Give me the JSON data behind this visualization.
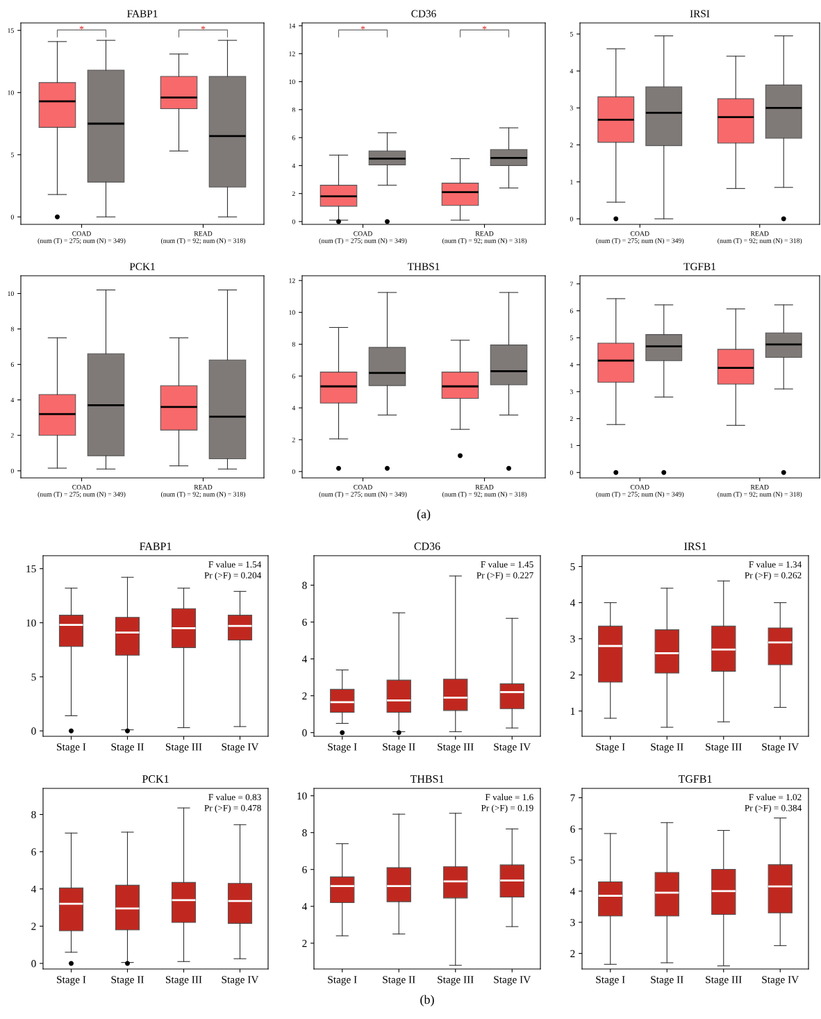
{
  "chart_data": [
    {
      "type": "box",
      "title": "FABP1",
      "categories": [
        "COAD\n(num (T) = 275; num (N) = 349)",
        "READ\n(num (T) = 92; num (N) = 318)"
      ],
      "ylim": [
        -0.6,
        15.6
      ],
      "yticks": [
        0,
        5,
        10,
        15
      ],
      "annotations": [
        "*",
        "*"
      ],
      "series": [
        {
          "color": "#f8696b",
          "boxes": [
            {
              "low": 1.8,
              "q1": 7.2,
              "median": 9.3,
              "q3": 10.8,
              "high": 14.1,
              "outliers": [
                0
              ]
            },
            {
              "low": 5.3,
              "q1": 8.7,
              "median": 9.6,
              "q3": 11.3,
              "high": 13.1
            }
          ]
        },
        {
          "color": "#7f7a78",
          "boxes": [
            {
              "low": 0,
              "q1": 2.8,
              "median": 7.5,
              "q3": 11.8,
              "high": 14.2
            },
            {
              "low": 0,
              "q1": 2.4,
              "median": 6.5,
              "q3": 11.3,
              "high": 14.2
            }
          ]
        }
      ]
    },
    {
      "type": "box",
      "title": "CD36",
      "categories": [
        "COAD\n(num (T) = 275; num (N) = 349)",
        "READ\n(num (T) = 92; num (N) = 318)"
      ],
      "ylim": [
        -0.2,
        14.2
      ],
      "yticks": [
        0,
        2,
        4,
        6,
        8,
        10,
        12,
        14
      ],
      "annotations": [
        "*",
        "*"
      ],
      "series": [
        {
          "color": "#f8696b",
          "boxes": [
            {
              "low": 0.1,
              "q1": 1.1,
              "median": 1.8,
              "q3": 2.6,
              "high": 4.75,
              "outliers": [
                0
              ]
            },
            {
              "low": 0.1,
              "q1": 1.15,
              "median": 2.1,
              "q3": 2.75,
              "high": 4.5
            }
          ]
        },
        {
          "color": "#7f7a78",
          "boxes": [
            {
              "low": 2.6,
              "q1": 4.05,
              "median": 4.5,
              "q3": 5.05,
              "high": 6.35,
              "outliers": [
                0
              ]
            },
            {
              "low": 2.4,
              "q1": 4.0,
              "median": 4.55,
              "q3": 5.15,
              "high": 6.7
            }
          ]
        }
      ]
    },
    {
      "type": "box",
      "title": "IRSI",
      "categories": [
        "COAD\n(num (T) = 275; num (N) = 349)",
        "READ\n(num (T) = 92; num (N) = 318)"
      ],
      "ylim": [
        -0.15,
        5.3
      ],
      "yticks": [
        0,
        1,
        2,
        3,
        4,
        5
      ],
      "series": [
        {
          "color": "#f8696b",
          "boxes": [
            {
              "low": 0.45,
              "q1": 2.07,
              "median": 2.68,
              "q3": 3.3,
              "high": 4.6,
              "outliers": [
                0
              ]
            },
            {
              "low": 0.82,
              "q1": 2.05,
              "median": 2.75,
              "q3": 3.25,
              "high": 4.4
            }
          ]
        },
        {
          "color": "#7f7a78",
          "boxes": [
            {
              "low": 0,
              "q1": 1.98,
              "median": 2.87,
              "q3": 3.57,
              "high": 4.95
            },
            {
              "low": 0.85,
              "q1": 2.18,
              "median": 3.0,
              "q3": 3.62,
              "high": 4.95,
              "outliers": [
                0
              ]
            }
          ]
        }
      ]
    },
    {
      "type": "box",
      "title": "PCK1",
      "categories": [
        "COAD\n(num (T) = 275; num (N) = 349)",
        "READ\n(num (T) = 92; num (N) = 318)"
      ],
      "ylim": [
        -0.4,
        11
      ],
      "yticks": [
        0,
        2,
        4,
        6,
        8,
        10
      ],
      "series": [
        {
          "color": "#f8696b",
          "boxes": [
            {
              "low": 0.15,
              "q1": 2.0,
              "median": 3.2,
              "q3": 4.3,
              "high": 7.5
            },
            {
              "low": 0.28,
              "q1": 2.3,
              "median": 3.6,
              "q3": 4.8,
              "high": 7.5
            }
          ]
        },
        {
          "color": "#7f7a78",
          "boxes": [
            {
              "low": 0.1,
              "q1": 0.85,
              "median": 3.7,
              "q3": 6.6,
              "high": 10.2
            },
            {
              "low": 0.1,
              "q1": 0.68,
              "median": 3.05,
              "q3": 6.25,
              "high": 10.2
            }
          ]
        }
      ]
    },
    {
      "type": "box",
      "title": "THBS1",
      "xlabel": "(a)",
      "categories": [
        "COAD\n(num (T) = 275; num (N) = 349)",
        "READ\n(num (T) = 92; num (N) = 318)"
      ],
      "ylim": [
        -0.4,
        12.3
      ],
      "yticks": [
        0,
        2,
        4,
        6,
        8,
        10,
        12
      ],
      "series": [
        {
          "color": "#f8696b",
          "boxes": [
            {
              "low": 2.05,
              "q1": 4.3,
              "median": 5.35,
              "q3": 6.25,
              "high": 9.05,
              "outliers": [
                0.2
              ]
            },
            {
              "low": 2.65,
              "q1": 4.6,
              "median": 5.35,
              "q3": 6.25,
              "high": 8.25,
              "outliers": [
                1.0
              ]
            }
          ]
        },
        {
          "color": "#7f7a78",
          "boxes": [
            {
              "low": 3.55,
              "q1": 5.4,
              "median": 6.2,
              "q3": 7.8,
              "high": 11.25,
              "outliers": [
                0.2
              ]
            },
            {
              "low": 3.55,
              "q1": 5.45,
              "median": 6.3,
              "q3": 7.95,
              "high": 11.25,
              "outliers": [
                0.2
              ]
            }
          ]
        }
      ]
    },
    {
      "type": "box",
      "title": "TGFB1",
      "categories": [
        "COAD\n(num (T) = 275; num (N) = 349)",
        "READ\n(num (T) = 92; num (N) = 318)"
      ],
      "ylim": [
        -0.2,
        7.3
      ],
      "yticks": [
        0,
        1,
        2,
        3,
        4,
        5,
        6,
        7
      ],
      "series": [
        {
          "color": "#f8696b",
          "boxes": [
            {
              "low": 1.78,
              "q1": 3.35,
              "median": 4.15,
              "q3": 4.8,
              "high": 6.45,
              "outliers": [
                0
              ]
            },
            {
              "low": 1.75,
              "q1": 3.28,
              "median": 3.88,
              "q3": 4.57,
              "high": 6.07
            }
          ]
        },
        {
          "color": "#7f7a78",
          "boxes": [
            {
              "low": 2.8,
              "q1": 4.15,
              "median": 4.68,
              "q3": 5.12,
              "high": 6.22,
              "outliers": [
                0
              ]
            },
            {
              "low": 3.1,
              "q1": 4.27,
              "median": 4.75,
              "q3": 5.18,
              "high": 6.22,
              "outliers": [
                0
              ]
            }
          ]
        }
      ]
    },
    {
      "type": "box",
      "title": "FABP1",
      "categories": [
        "Stage I",
        "Stage II",
        "Stage III",
        "Stage IV"
      ],
      "ylim": [
        -0.5,
        16.2
      ],
      "yticks": [
        0,
        5,
        10,
        15
      ],
      "annotations": [
        "F value = 1.54",
        "Pr (>F) = 0.204"
      ],
      "series": [
        {
          "color": "#c0281f",
          "boxes": [
            {
              "low": 1.4,
              "q1": 7.8,
              "median": 9.8,
              "q3": 10.7,
              "high": 13.2,
              "outliers": [
                0
              ]
            },
            {
              "low": 0.1,
              "q1": 7.0,
              "median": 9.1,
              "q3": 10.5,
              "high": 14.2,
              "outliers": [
                0
              ]
            },
            {
              "low": 0.3,
              "q1": 7.7,
              "median": 9.5,
              "q3": 11.3,
              "high": 13.2
            },
            {
              "low": 0.4,
              "q1": 8.4,
              "median": 9.7,
              "q3": 10.7,
              "high": 12.9
            }
          ]
        }
      ]
    },
    {
      "type": "box",
      "title": "CD36",
      "categories": [
        "Stage I",
        "Stage II",
        "Stage III",
        "Stage IV"
      ],
      "ylim": [
        -0.2,
        9.6
      ],
      "yticks": [
        0,
        2,
        4,
        6,
        8
      ],
      "annotations": [
        "F value = 1.45",
        "Pr (>F) = 0.227"
      ],
      "series": [
        {
          "color": "#c0281f",
          "boxes": [
            {
              "low": 0.5,
              "q1": 1.1,
              "median": 1.65,
              "q3": 2.35,
              "high": 3.4,
              "outliers": [
                0
              ]
            },
            {
              "low": 0.05,
              "q1": 1.1,
              "median": 1.75,
              "q3": 2.85,
              "high": 6.5,
              "outliers": [
                0
              ]
            },
            {
              "low": 0.05,
              "q1": 1.2,
              "median": 1.9,
              "q3": 2.9,
              "high": 8.5
            },
            {
              "low": 0.25,
              "q1": 1.3,
              "median": 2.2,
              "q3": 2.65,
              "high": 6.2
            }
          ]
        }
      ]
    },
    {
      "type": "box",
      "title": "IRS1",
      "categories": [
        "Stage I",
        "Stage II",
        "Stage III",
        "Stage IV"
      ],
      "ylim": [
        0.3,
        5.3
      ],
      "yticks": [
        1,
        2,
        3,
        4,
        5
      ],
      "annotations": [
        "F value = 1.34",
        "Pr (>F) = 0.262"
      ],
      "series": [
        {
          "color": "#c0281f",
          "boxes": [
            {
              "low": 0.8,
              "q1": 1.8,
              "median": 2.8,
              "q3": 3.35,
              "high": 4.0
            },
            {
              "low": 0.55,
              "q1": 2.05,
              "median": 2.6,
              "q3": 3.25,
              "high": 4.4
            },
            {
              "low": 0.7,
              "q1": 2.1,
              "median": 2.7,
              "q3": 3.35,
              "high": 4.6
            },
            {
              "low": 1.1,
              "q1": 2.28,
              "median": 2.9,
              "q3": 3.3,
              "high": 4.0
            }
          ]
        }
      ]
    },
    {
      "type": "box",
      "title": "PCK1",
      "categories": [
        "Stage I",
        "Stage II",
        "Stage III",
        "Stage IV"
      ],
      "ylim": [
        -0.3,
        9.4
      ],
      "yticks": [
        0,
        2,
        4,
        6,
        8
      ],
      "annotations": [
        "F value = 0.83",
        "Pr (>F) = 0.478"
      ],
      "series": [
        {
          "color": "#c0281f",
          "boxes": [
            {
              "low": 0.6,
              "q1": 1.75,
              "median": 3.2,
              "q3": 4.05,
              "high": 7.0,
              "outliers": [
                0
              ]
            },
            {
              "low": 0.05,
              "q1": 1.8,
              "median": 2.95,
              "q3": 4.2,
              "high": 7.05,
              "outliers": [
                0
              ]
            },
            {
              "low": 0.1,
              "q1": 2.2,
              "median": 3.4,
              "q3": 4.35,
              "high": 8.35
            },
            {
              "low": 0.25,
              "q1": 2.15,
              "median": 3.35,
              "q3": 4.3,
              "high": 7.45
            }
          ]
        }
      ]
    },
    {
      "type": "box",
      "title": "THBS1",
      "xlabel": "(b)",
      "categories": [
        "Stage I",
        "Stage II",
        "Stage III",
        "Stage IV"
      ],
      "ylim": [
        0.6,
        10.4
      ],
      "yticks": [
        2,
        4,
        6,
        8,
        10
      ],
      "annotations": [
        "F value = 1.6",
        "Pr (>F) = 0.19"
      ],
      "series": [
        {
          "color": "#c0281f",
          "boxes": [
            {
              "low": 2.4,
              "q1": 4.2,
              "median": 5.1,
              "q3": 5.6,
              "high": 7.4
            },
            {
              "low": 2.5,
              "q1": 4.25,
              "median": 5.1,
              "q3": 6.1,
              "high": 9.0
            },
            {
              "low": 0.8,
              "q1": 4.45,
              "median": 5.35,
              "q3": 6.15,
              "high": 9.05
            },
            {
              "low": 2.9,
              "q1": 4.5,
              "median": 5.4,
              "q3": 6.25,
              "high": 8.2
            }
          ]
        }
      ]
    },
    {
      "type": "box",
      "title": "TGFB1",
      "categories": [
        "Stage I",
        "Stage II",
        "Stage III",
        "Stage IV"
      ],
      "ylim": [
        1.5,
        7.3
      ],
      "yticks": [
        2,
        3,
        4,
        5,
        6,
        7
      ],
      "annotations": [
        "F value = 1.02",
        "Pr (>F) = 0.384"
      ],
      "series": [
        {
          "color": "#c0281f",
          "boxes": [
            {
              "low": 1.65,
              "q1": 3.2,
              "median": 3.85,
              "q3": 4.3,
              "high": 5.85
            },
            {
              "low": 1.7,
              "q1": 3.2,
              "median": 3.95,
              "q3": 4.6,
              "high": 6.2
            },
            {
              "low": 1.6,
              "q1": 3.25,
              "median": 4.0,
              "q3": 4.7,
              "high": 5.95
            },
            {
              "low": 2.25,
              "q1": 3.3,
              "median": 4.15,
              "q3": 4.85,
              "high": 6.35
            }
          ]
        }
      ]
    }
  ]
}
